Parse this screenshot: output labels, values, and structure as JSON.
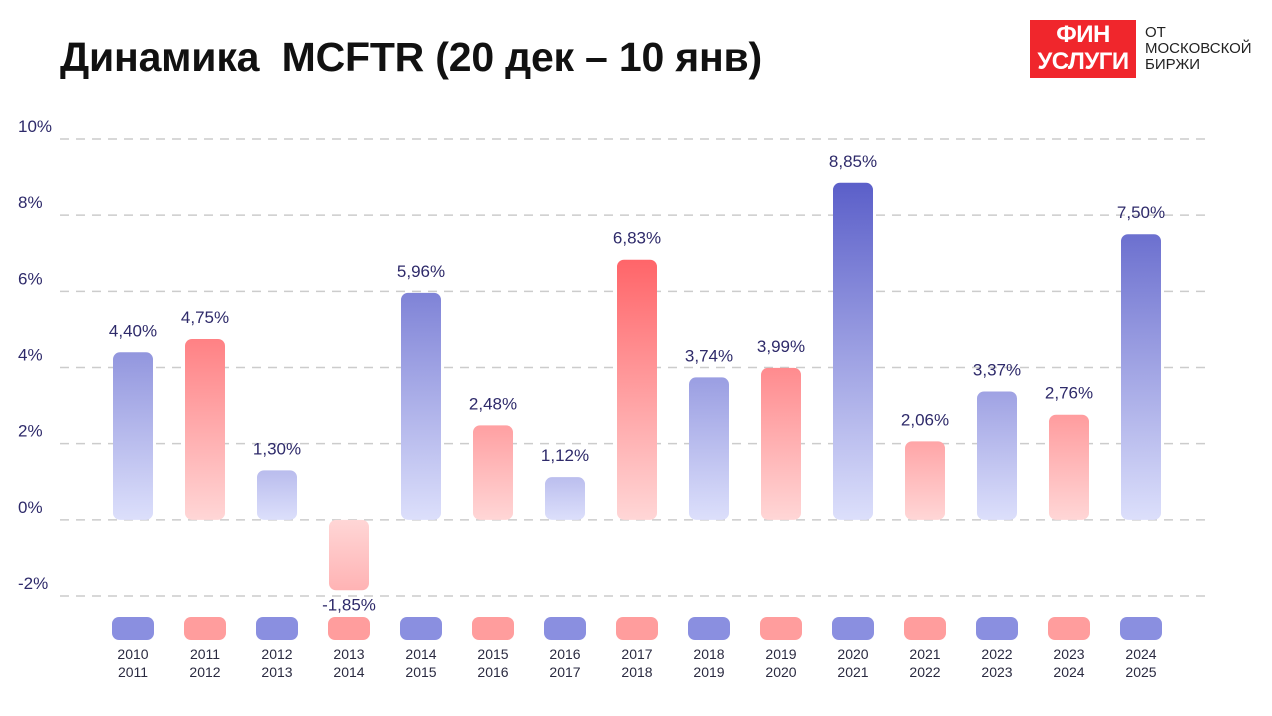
{
  "title": "Динамика  MCFTR (20 дек – 10 янв)",
  "logo": {
    "main_line1": "ФИН",
    "main_line2": "УСЛУГИ",
    "side_line1": "ОТ",
    "side_line2": "МОСКОВСКОЙ",
    "side_line3": "БИРЖИ"
  },
  "colors": {
    "blue": "#5b5fc9",
    "blue_light": "#dcdffb",
    "red": "#ff4a4f",
    "red_light": "#ffd6d6",
    "legend_blue": "#8a8fe0",
    "legend_red": "#ff9d9d",
    "grid": "#cccccc",
    "label": "#2e2a6a"
  },
  "chart_data": {
    "type": "bar",
    "categories": [
      "2010\n2011",
      "2011\n2012",
      "2012\n2013",
      "2013\n2014",
      "2014\n2015",
      "2015\n2016",
      "2016\n2017",
      "2017\n2018",
      "2018\n2019",
      "2019\n2020",
      "2020\n2021",
      "2021\n2022",
      "2022\n2023",
      "2023\n2024",
      "2024\n2025"
    ],
    "values": [
      4.4,
      4.75,
      1.3,
      -1.85,
      5.96,
      2.48,
      1.12,
      6.83,
      3.74,
      3.99,
      8.85,
      2.06,
      3.37,
      2.76,
      7.5
    ],
    "value_labels": [
      "4,40%",
      "4,75%",
      "1,30%",
      "-1,85%",
      "5,96%",
      "2,48%",
      "1,12%",
      "6,83%",
      "3,74%",
      "3,99%",
      "8,85%",
      "2,06%",
      "3,37%",
      "2,76%",
      "7,50%"
    ],
    "bar_colors": [
      "blue",
      "red",
      "blue",
      "red",
      "blue",
      "red",
      "blue",
      "red",
      "blue",
      "red",
      "blue",
      "red",
      "blue",
      "red",
      "blue"
    ],
    "ylim": [
      -2,
      10
    ],
    "yticks": [
      10,
      8,
      6,
      4,
      2,
      0,
      -2
    ],
    "ytick_labels": [
      "10%",
      "8%",
      "6%",
      "4%",
      "2%",
      "0%",
      "-2%"
    ],
    "grid": true,
    "xlabel": "",
    "ylabel": ""
  }
}
